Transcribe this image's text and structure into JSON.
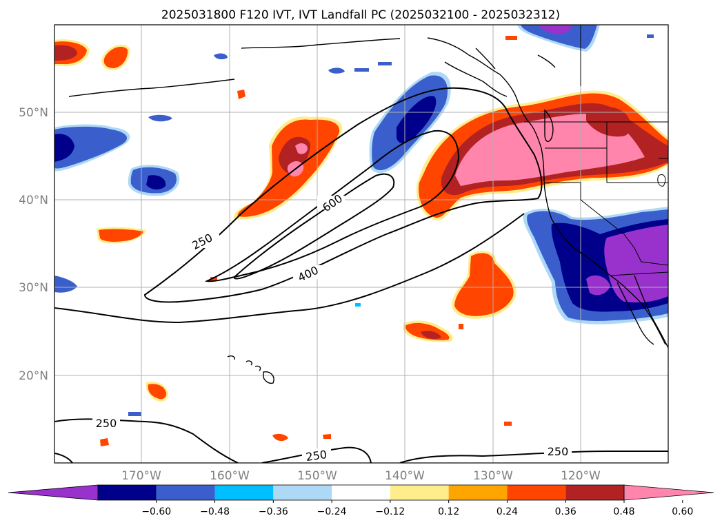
{
  "figure": {
    "title": "2025031800 F120 IVT, IVT Landfall PC (2025032100 - 2025032312)"
  },
  "map": {
    "lon_range": [
      -180,
      -110
    ],
    "lat_range": [
      10,
      60
    ],
    "lat_labels": [
      "20°N",
      "30°N",
      "40°N",
      "50°N"
    ],
    "lon_labels": [
      "170°W",
      "160°W",
      "150°W",
      "140°W",
      "130°W",
      "120°W"
    ],
    "contour_labels": [
      "250",
      "600",
      "400",
      "250",
      "250",
      "250"
    ]
  },
  "colorbar": {
    "ticks": [
      "−0.60",
      "−0.48",
      "−0.36",
      "−0.24",
      "−0.12",
      "0.12",
      "0.24",
      "0.36",
      "0.48",
      "0.60"
    ],
    "colors": [
      "#9932CC",
      "#00008B",
      "#3A5FCD",
      "#00BFFF",
      "#ADD8F6",
      "#FFFFFF",
      "#FFEC8B",
      "#FFA500",
      "#FF4500",
      "#B22222",
      "#FF85AD"
    ],
    "extend": "both"
  }
}
